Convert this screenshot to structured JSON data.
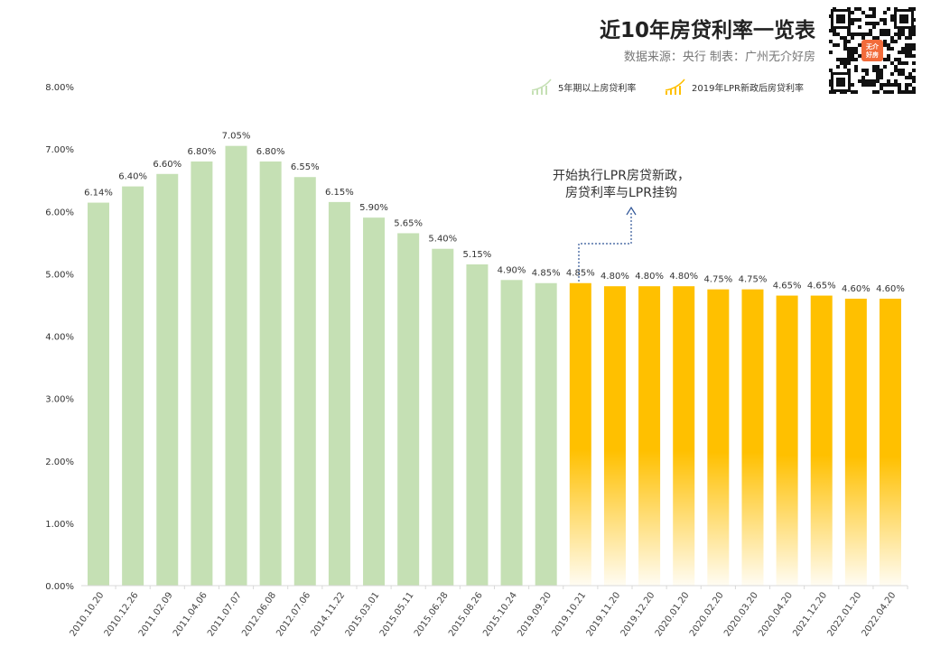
{
  "header": {
    "title": "近10年房贷利率一览表",
    "source": "数据来源：央行  制表：广州无介好房",
    "qr_badge": "无介好房",
    "logo_watermark": "无介好房"
  },
  "colors": {
    "green": "#c5e0b4",
    "yellow": "#ffc000",
    "axis": "#d9d9d9"
  },
  "chart_data": {
    "type": "bar",
    "title": "近10年房贷利率一览表",
    "ylim": [
      0,
      8
    ],
    "yticks": [
      "0.00%",
      "1.00%",
      "2.00%",
      "3.00%",
      "4.00%",
      "5.00%",
      "6.00%",
      "7.00%",
      "8.00%"
    ],
    "grid": false,
    "legend_placement": "top-right",
    "categories": [
      "2010.10.20",
      "2010.12.26",
      "2011.02.09",
      "2011.04.06",
      "2011.07.07",
      "2012.06.08",
      "2012.07.06",
      "2014.11.22",
      "2015.03.01",
      "2015.05.11",
      "2015.06.28",
      "2015.08.26",
      "2015.10.24",
      "2019.09.20",
      "2019.10.21",
      "2019.11.20",
      "2019.12.20",
      "2020.01.20",
      "2020.02.20",
      "2020.03.20",
      "2020.04.20",
      "2021.12.20",
      "2022.01.20",
      "2022.04.20"
    ],
    "values": [
      6.14,
      6.4,
      6.6,
      6.8,
      7.05,
      6.8,
      6.55,
      6.15,
      5.9,
      5.65,
      5.4,
      5.15,
      4.9,
      4.85,
      4.85,
      4.8,
      4.8,
      4.8,
      4.75,
      4.75,
      4.65,
      4.65,
      4.6,
      4.6
    ],
    "labels": [
      "6.14%",
      "6.40%",
      "6.60%",
      "6.80%",
      "7.05%",
      "6.80%",
      "6.55%",
      "6.15%",
      "5.90%",
      "5.65%",
      "5.40%",
      "5.15%",
      "4.90%",
      "4.85%",
      "4.85%",
      "4.80%",
      "4.80%",
      "4.80%",
      "4.75%",
      "4.75%",
      "4.65%",
      "4.65%",
      "4.60%",
      "4.60%"
    ],
    "series": [
      {
        "name": "5年期以上房贷利率",
        "range": [
          0,
          13
        ],
        "color": "#c5e0b4"
      },
      {
        "name": "2019年LPR新政后房贷利率",
        "range": [
          14,
          23
        ],
        "color": "#ffc000"
      }
    ],
    "annotation": [
      "开始执行LPR房贷新政，",
      "房贷利率与LPR挂钩"
    ]
  }
}
